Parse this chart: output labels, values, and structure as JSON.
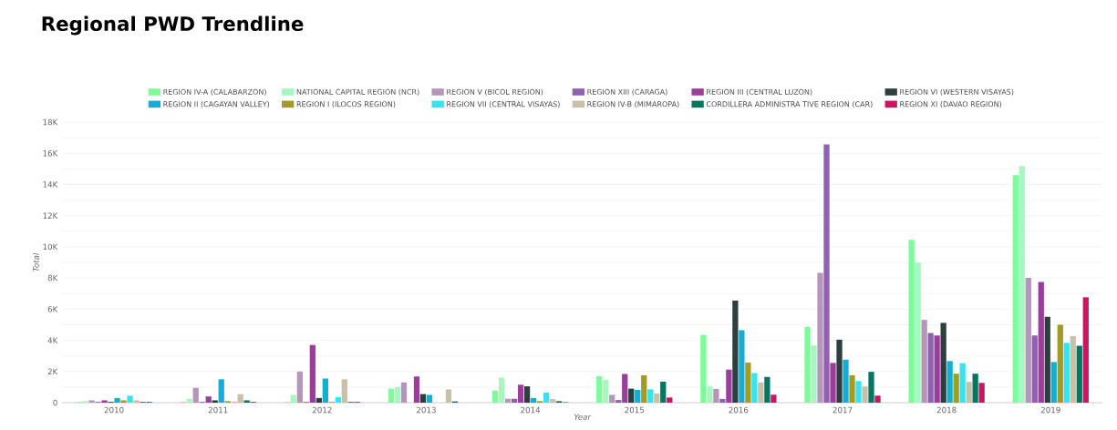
{
  "chart_data": {
    "type": "bar",
    "title": "Regional PWD Trendline",
    "xlabel": "Year",
    "ylabel": "Total",
    "categories": [
      "2010",
      "2011",
      "2012",
      "2013",
      "2014",
      "2015",
      "2016",
      "2017",
      "2018",
      "2019"
    ],
    "ylim": [
      0,
      18000
    ],
    "yticks": [
      {
        "value": 0,
        "label": "0"
      },
      {
        "value": 1000,
        "label": null
      },
      {
        "value": 2000,
        "label": "2K"
      },
      {
        "value": 3000,
        "label": null
      },
      {
        "value": 4000,
        "label": "4K"
      },
      {
        "value": 5000,
        "label": null
      },
      {
        "value": 6000,
        "label": "6K"
      },
      {
        "value": 7000,
        "label": null
      },
      {
        "value": 8000,
        "label": "8K"
      },
      {
        "value": 9000,
        "label": null
      },
      {
        "value": 10000,
        "label": "10K"
      },
      {
        "value": 11000,
        "label": null
      },
      {
        "value": 12000,
        "label": "12K"
      },
      {
        "value": 13000,
        "label": null
      },
      {
        "value": 14000,
        "label": "14K"
      },
      {
        "value": 15000,
        "label": null
      },
      {
        "value": 16000,
        "label": "16K"
      },
      {
        "value": 17000,
        "label": null
      },
      {
        "value": 18000,
        "label": "18K"
      }
    ],
    "grid": "y",
    "legend": "top",
    "series": [
      {
        "name": "REGION IV-A (CALABARZON)",
        "color": "#7dfc9a",
        "values": [
          50,
          50,
          50,
          900,
          780,
          1700,
          4350,
          4860,
          10450,
          14590
        ]
      },
      {
        "name": "NATIONAL CAPITAL REGION (NCR)",
        "color": "#a8f7c0",
        "values": [
          100,
          250,
          500,
          1000,
          1600,
          1470,
          1040,
          3670,
          8980,
          15180
        ]
      },
      {
        "name": "REGION V (BICOL REGION)",
        "color": "#b595b9",
        "values": [
          150,
          950,
          2000,
          1300,
          250,
          500,
          880,
          8330,
          5310,
          8000
        ]
      },
      {
        "name": "REGION XIII (CARAGA)",
        "color": "#9061ae",
        "values": [
          50,
          50,
          50,
          0,
          250,
          170,
          240,
          16570,
          4470,
          4310
        ]
      },
      {
        "name": "REGION III (CENTRAL LUZON)",
        "color": "#9b3d9a",
        "values": [
          150,
          400,
          3700,
          1680,
          1150,
          1840,
          2120,
          2550,
          4310,
          7750
        ]
      },
      {
        "name": "REGION VI (WESTERN VISAYAS)",
        "color": "#2c3e3e",
        "values": [
          50,
          150,
          300,
          550,
          1050,
          900,
          6550,
          4040,
          5120,
          5510
        ]
      },
      {
        "name": "REGION II (CAGAYAN VALLEY)",
        "color": "#15aed3",
        "values": [
          300,
          1500,
          1550,
          500,
          300,
          820,
          4650,
          2760,
          2670,
          2610
        ]
      },
      {
        "name": "REGION I (ILOCOS REGION)",
        "color": "#a39c22",
        "values": [
          150,
          100,
          50,
          0,
          100,
          1760,
          2570,
          1760,
          1860,
          5000
        ]
      },
      {
        "name": "REGION VII (CENTRAL VISAYAS)",
        "color": "#36e3ee",
        "values": [
          450,
          50,
          350,
          0,
          650,
          860,
          1900,
          1390,
          2530,
          3840
        ]
      },
      {
        "name": "REGION IV-B (MIMAROPA)",
        "color": "#c8c0a8",
        "values": [
          150,
          550,
          1500,
          850,
          230,
          590,
          1300,
          1040,
          1330,
          4270
        ]
      },
      {
        "name": "CORDILLERA ADMINISTRA TIVE REGION (CAR)",
        "color": "#087560",
        "values": [
          50,
          150,
          50,
          80,
          100,
          1350,
          1650,
          1980,
          1860,
          3650
        ]
      },
      {
        "name": "REGION XI (DAVAO REGION)",
        "color": "#cc1460",
        "values": [
          50,
          50,
          50,
          0,
          30,
          330,
          510,
          450,
          1270,
          6760
        ]
      }
    ]
  }
}
